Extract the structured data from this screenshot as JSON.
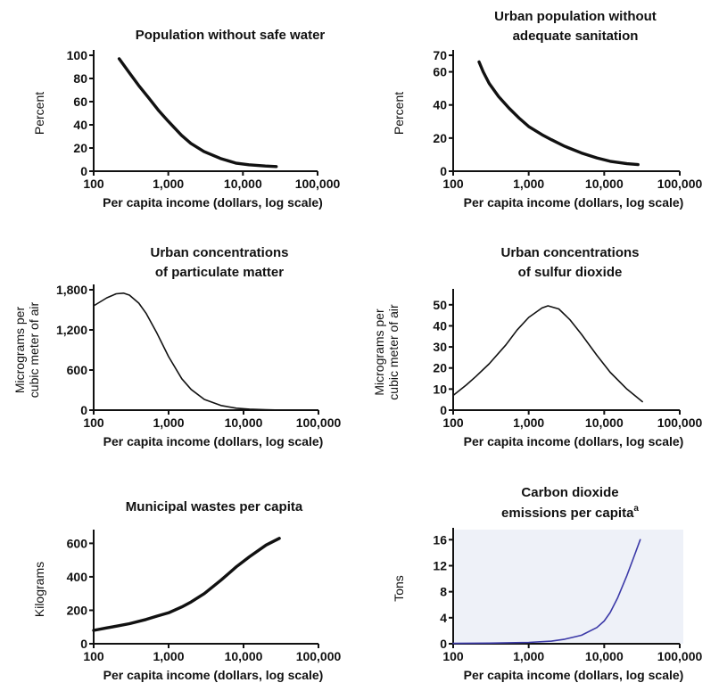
{
  "chart_data": [
    {
      "type": "line",
      "title": [
        "Population without safe water"
      ],
      "xlabel": "Per capita income (dollars, log scale)",
      "ylabel": "Percent",
      "x_scale": "log",
      "xlim": [
        100,
        100000
      ],
      "ylim": [
        0,
        100
      ],
      "x_ticks": [
        100,
        1000,
        10000,
        100000
      ],
      "x_tick_labels": [
        "100",
        "1,000",
        "10,000",
        "100,000"
      ],
      "y_ticks": [
        0,
        20,
        40,
        60,
        80,
        100
      ],
      "y_tick_labels": [
        "0",
        "20",
        "40",
        "60",
        "80",
        "100"
      ],
      "series": [
        {
          "color": "#111111",
          "x": [
            220,
            300,
            400,
            550,
            750,
            1000,
            1500,
            2000,
            3000,
            5000,
            8000,
            12000,
            20000,
            28000
          ],
          "y": [
            97,
            85,
            74,
            63,
            52,
            43,
            31,
            24,
            17,
            11,
            7,
            5.5,
            4.5,
            4
          ]
        }
      ]
    },
    {
      "type": "line",
      "title": [
        "Urban population without",
        "adequate sanitation"
      ],
      "xlabel": "Per capita income (dollars, log scale)",
      "ylabel": "Percent",
      "x_scale": "log",
      "xlim": [
        100,
        100000
      ],
      "ylim": [
        0,
        70
      ],
      "x_ticks": [
        100,
        1000,
        10000,
        100000
      ],
      "x_tick_labels": [
        "100",
        "1,000",
        "10,000",
        "100,000"
      ],
      "y_ticks": [
        0,
        20,
        40,
        60,
        70
      ],
      "y_tick_labels": [
        "0",
        "20",
        "40",
        "60",
        "70"
      ],
      "series": [
        {
          "color": "#111111",
          "x": [
            220,
            250,
            300,
            400,
            550,
            750,
            1000,
            1500,
            2000,
            3000,
            5000,
            8000,
            12000,
            20000,
            28000
          ],
          "y": [
            66,
            60,
            53,
            45,
            38,
            32,
            27,
            22,
            19,
            15,
            11,
            8,
            6,
            4.5,
            4
          ]
        }
      ]
    },
    {
      "type": "line",
      "title": [
        "Urban concentrations",
        "of particulate matter"
      ],
      "xlabel": "Per capita income (dollars, log scale)",
      "ylabel": [
        "Micrograms per",
        "cubic meter of air"
      ],
      "x_scale": "log",
      "xlim": [
        100,
        100000
      ],
      "ylim": [
        0,
        1800
      ],
      "x_ticks": [
        100,
        1000,
        10000,
        100000
      ],
      "x_tick_labels": [
        "100",
        "1,000",
        "10,000",
        "100,000"
      ],
      "y_ticks": [
        0,
        600,
        1200,
        1800
      ],
      "y_tick_labels": [
        "0",
        "600",
        "1,200",
        "1,800"
      ],
      "series": [
        {
          "color": "#111111",
          "x": [
            100,
            150,
            200,
            250,
            300,
            400,
            500,
            700,
            1000,
            1500,
            2000,
            3000,
            5000,
            8000,
            12000,
            20000,
            30000
          ],
          "y": [
            1560,
            1680,
            1740,
            1750,
            1720,
            1600,
            1450,
            1150,
            800,
            470,
            310,
            160,
            70,
            30,
            15,
            5,
            2
          ]
        }
      ]
    },
    {
      "type": "line",
      "title": [
        "Urban concentrations",
        "of sulfur dioxide"
      ],
      "xlabel": "Per capita income (dollars, log scale)",
      "ylabel": [
        "Micrograms per",
        "cubic meter of air"
      ],
      "x_scale": "log",
      "xlim": [
        100,
        100000
      ],
      "ylim": [
        0,
        55
      ],
      "x_ticks": [
        100,
        1000,
        10000,
        100000
      ],
      "x_tick_labels": [
        "100",
        "1,000",
        "10,000",
        "100,000"
      ],
      "y_ticks": [
        0,
        10,
        20,
        30,
        40,
        50
      ],
      "y_tick_labels": [
        "0",
        "10",
        "20",
        "30",
        "40",
        "50"
      ],
      "series": [
        {
          "color": "#111111",
          "x": [
            100,
            150,
            200,
            300,
            500,
            700,
            1000,
            1500,
            1800,
            2500,
            3500,
            5000,
            8000,
            12000,
            20000,
            32000
          ],
          "y": [
            7,
            12,
            16,
            22,
            31,
            38,
            44,
            48.5,
            49.5,
            48,
            43,
            36,
            26,
            18,
            10,
            4
          ]
        }
      ]
    },
    {
      "type": "line",
      "title": [
        "Municipal wastes per capita"
      ],
      "xlabel": "Per capita income (dollars, log scale)",
      "ylabel": "Kilograms",
      "x_scale": "log",
      "xlim": [
        100,
        100000
      ],
      "ylim": [
        0,
        650
      ],
      "x_ticks": [
        100,
        1000,
        10000,
        100000
      ],
      "x_tick_labels": [
        "100",
        "1,000",
        "10,000",
        "100,000"
      ],
      "y_ticks": [
        0,
        200,
        400,
        600
      ],
      "y_tick_labels": [
        "0",
        "200",
        "400",
        "600"
      ],
      "series": [
        {
          "color": "#111111",
          "x": [
            100,
            150,
            200,
            300,
            500,
            700,
            1000,
            1500,
            2000,
            3000,
            5000,
            8000,
            12000,
            20000,
            30000
          ],
          "y": [
            80,
            95,
            105,
            120,
            145,
            165,
            185,
            220,
            250,
            300,
            380,
            460,
            520,
            590,
            630
          ]
        }
      ]
    },
    {
      "type": "line",
      "title": [
        "Carbon dioxide",
        "emissions per capita"
      ],
      "title_superscript": "a",
      "xlabel": "Per capita income (dollars, log scale)",
      "ylabel": "Tons",
      "x_scale": "log",
      "xlim": [
        100,
        100000
      ],
      "ylim": [
        0,
        17
      ],
      "x_ticks": [
        100,
        1000,
        10000,
        100000
      ],
      "x_tick_labels": [
        "100",
        "1,000",
        "10,000",
        "100,000"
      ],
      "y_ticks": [
        0,
        4,
        8,
        12,
        16
      ],
      "y_tick_labels": [
        "0",
        "4",
        "8",
        "12",
        "16"
      ],
      "background": "#eef1f8",
      "series": [
        {
          "color": "#3c3aa8",
          "x": [
            100,
            300,
            1000,
            2000,
            3000,
            5000,
            8000,
            10000,
            12000,
            15000,
            20000,
            25000,
            30000
          ],
          "y": [
            0.05,
            0.1,
            0.2,
            0.4,
            0.7,
            1.3,
            2.5,
            3.5,
            4.8,
            7,
            10.5,
            13.5,
            16
          ]
        }
      ]
    }
  ]
}
